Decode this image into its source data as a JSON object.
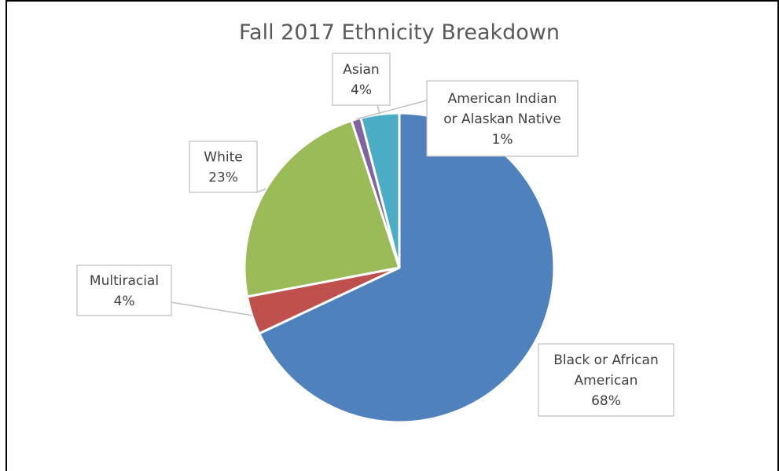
{
  "chart_data": {
    "type": "pie",
    "title": "Fall 2017 Ethnicity Breakdown",
    "categories": [
      "Black or African American",
      "Multiracial",
      "White",
      "American Indian or Alaskan Native",
      "Asian"
    ],
    "values": [
      68,
      4,
      23,
      1,
      4
    ],
    "slices": [
      {
        "name": "Black or African American",
        "label_lines": [
          "Black or African",
          "American"
        ],
        "value": 68,
        "percent_label": "68%",
        "color": "#4F81BD"
      },
      {
        "name": "Multiracial",
        "label_lines": [
          "Multiracial"
        ],
        "value": 4,
        "percent_label": "4%",
        "color": "#C0504D"
      },
      {
        "name": "White",
        "label_lines": [
          "White"
        ],
        "value": 23,
        "percent_label": "23%",
        "color": "#9BBB59"
      },
      {
        "name": "American Indian or Alaskan Native",
        "label_lines": [
          "American Indian",
          "or Alaskan Native"
        ],
        "value": 1,
        "percent_label": "1%",
        "color": "#8064A2"
      },
      {
        "name": "Asian",
        "label_lines": [
          "Asian"
        ],
        "value": 4,
        "percent_label": "4%",
        "color": "#4BACC6"
      }
    ],
    "start": "top",
    "direction": "clockwise",
    "legend": "none",
    "data_labels": "callout boxes with category name and percentage"
  }
}
